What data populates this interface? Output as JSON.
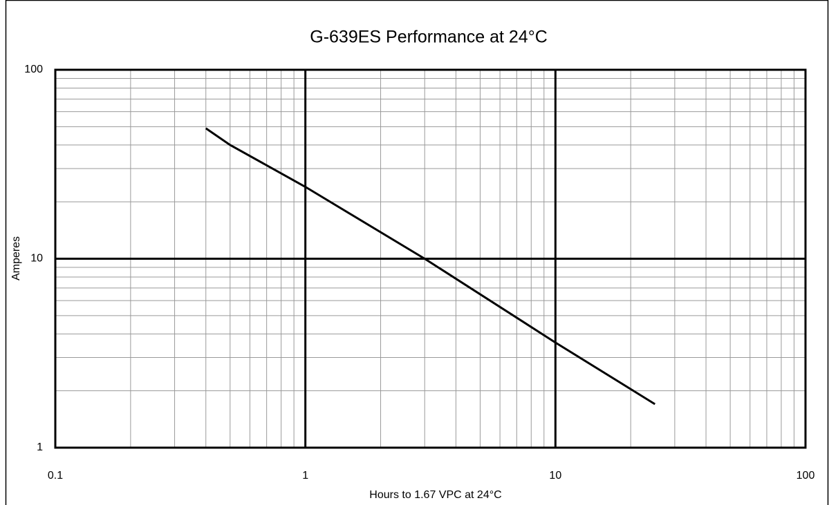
{
  "chart_data": {
    "type": "line",
    "title": "G-639ES Performance at 24°C",
    "x_label": "Hours to 1.67 VPC at 24°C",
    "y_label": "Amperes",
    "x": [
      0.4,
      0.5,
      1,
      3,
      10,
      25
    ],
    "series": [
      {
        "name": "G-639ES",
        "color": "#000000",
        "values": [
          49,
          40,
          24,
          10,
          3.6,
          1.7
        ]
      }
    ],
    "xlim": [
      0.1,
      100
    ],
    "ylim": [
      1,
      100
    ],
    "xticks": [
      0.1,
      1,
      10,
      100
    ],
    "yticks": [
      1,
      10,
      100
    ],
    "log_x": true,
    "log_y": true,
    "grid": true
  }
}
